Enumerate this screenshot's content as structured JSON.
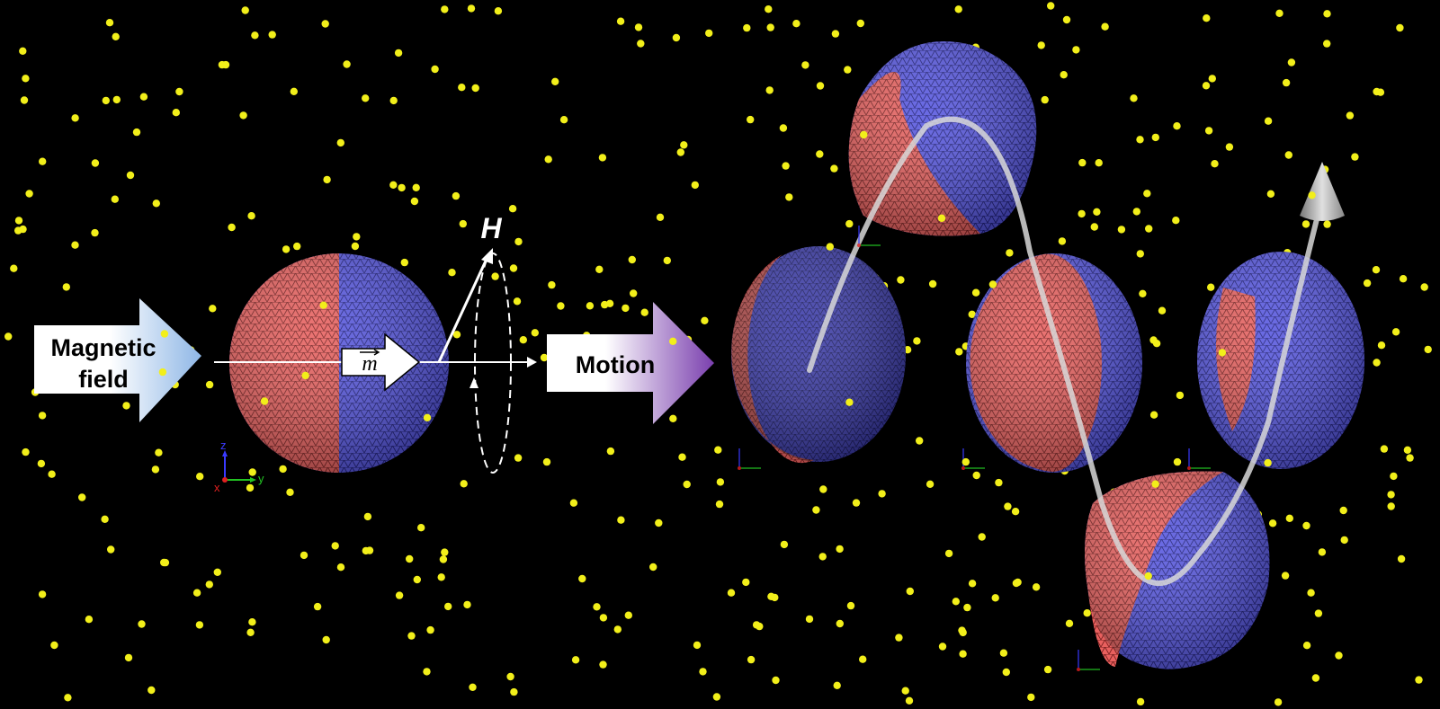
{
  "labels": {
    "input_arrow_line1": "Magnetic",
    "input_arrow_line2": "field",
    "output_arrow": "Motion",
    "field_vector": "H",
    "moment_vector": "m"
  },
  "axis_triad": {
    "z": "z",
    "y": "y",
    "x": "x"
  },
  "colors": {
    "background": "#000000",
    "particle": "#f2ef1a",
    "hemisphere_red": "#e8605e",
    "hemisphere_blue": "#4f4fdc",
    "arrow_input_end": "#8fb7e6",
    "arrow_output_end": "#7a3fae",
    "trajectory": "#d8d8d8",
    "axis_z": "#3a3aff",
    "axis_y": "#22c322",
    "axis_x": "#e02020"
  },
  "icons": {
    "input_arrow": "block-arrow-right",
    "output_arrow": "block-arrow-right",
    "moment_arrow": "block-arrow-right",
    "field_precession": "dashed-ellipse-rotation",
    "trajectory_end": "cone-arrowhead"
  }
}
